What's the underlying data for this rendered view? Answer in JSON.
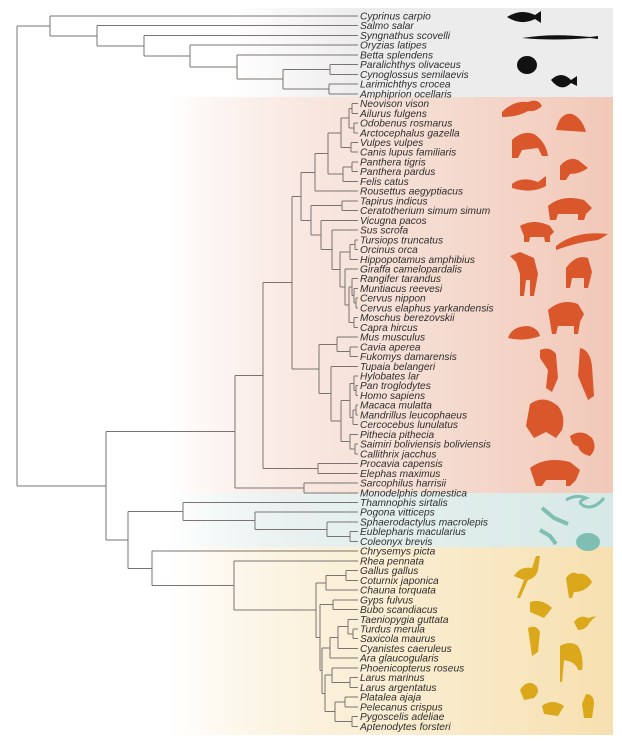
{
  "groups": [
    {
      "name": "fish",
      "color": "#ececec",
      "icon_color": "#111111",
      "species": [
        "Cyprinus carpio",
        "Salmo salar",
        "Syngnathus scovelli",
        "Oryzias latipes",
        "Betta splendens",
        "Paralichthys olivaceus",
        "Cynoglossus semilaevis",
        "Larimichthys crocea",
        "Amphiprion ocellaris"
      ],
      "icons": [
        "fish-silhouette-icon",
        "pipefish-silhouette-icon",
        "flatfish-silhouette-icon",
        "clownfish-silhouette-icon"
      ]
    },
    {
      "name": "mammals",
      "color": "#f3cfc2",
      "icon_color": "#d9572a",
      "species": [
        "Neovison vison",
        "Ailurus fulgens",
        "Odobenus rosmarus",
        "Arctocephalus gazella",
        "Vulpes vulpes",
        "Canis lupus familiaris",
        "Panthera tigris",
        "Panthera pardus",
        "Felis catus",
        "Rousettus aegyptiacus",
        "Tapirus indicus",
        "Ceratotherium simum simum",
        "Vicugna pacos",
        "Sus scrofa",
        "Tursiops truncatus",
        "Orcinus orca",
        "Hippopotamus amphibius",
        "Giraffa camelopardalis",
        "Rangifer tarandus",
        "Muntiacus reevesi",
        "Cervus nippon",
        "Cervus elaphus yarkandensis",
        "Moschus berezovskii",
        "Capra hircus",
        "Mus musculus",
        "Cavia aperea",
        "Fukomys damarensis",
        "Tupaia belangeri",
        "Hylobates lar",
        "Pan troglodytes",
        "Homo sapiens",
        "Macaca mulatta",
        "Mandrillus leucophaeus",
        "Cercocebus lunulatus",
        "Pithecia pithecia",
        "Saimiri boliviensis boliviensis",
        "Callithrix jacchus",
        "Procavia capensis",
        "Elephas maximus",
        "Sarcophilus harrisii",
        "Monodelphis domestica"
      ],
      "icons": [
        "otter-silhouette-icon",
        "seal-silhouette-icon",
        "dog-silhouette-icon",
        "fox-silhouette-icon",
        "cat-silhouette-icon",
        "tapir-silhouette-icon",
        "pig-silhouette-icon",
        "dolphin-silhouette-icon",
        "giraffe-silhouette-icon",
        "antelope-silhouette-icon",
        "goat-silhouette-icon",
        "mouse-silhouette-icon",
        "monkey-silhouette-icon",
        "gorilla-silhouette-icon",
        "lemur-silhouette-icon",
        "tasmanian-devil-silhouette-icon"
      ]
    },
    {
      "name": "reptiles",
      "color": "#dcebe9",
      "icon_color": "#7fbfb3",
      "species": [
        "Thamnophis sirtalis",
        "Pogona vitticeps",
        "Sphaerodactylus macrolepis",
        "Eublepharis macularius",
        "Coleonyx brevis",
        "Chrysemys picta"
      ],
      "icons": [
        "snake-silhouette-icon",
        "lizard-silhouette-icon",
        "gecko-silhouette-icon",
        "turtle-silhouette-icon"
      ]
    },
    {
      "name": "birds",
      "color": "#f8e5bd",
      "icon_color": "#dba81c",
      "species": [
        "Rhea pennata",
        "Gallus gallus",
        "Coturnix japonica",
        "Chauna torquata",
        "Gyps fulvus",
        "Bubo scandiacus",
        "Taeniopygia guttata",
        "Turdus merula",
        "Saxicola maurus",
        "Cyanistes caeruleus",
        "Ara glaucogularis",
        "Phoenicopterus roseus",
        "Larus marinus",
        "Larus argentatus",
        "Platalea ajaja",
        "Pelecanus crispus",
        "Pygoscelis adeliae",
        "Aptenodytes forsteri"
      ],
      "icons": [
        "rhea-silhouette-icon",
        "rooster-silhouette-icon",
        "vulture-silhouette-icon",
        "songbird-silhouette-icon",
        "parrot-silhouette-icon",
        "flamingo-silhouette-icon",
        "gull-silhouette-icon",
        "pelican-silhouette-icon",
        "penguin-silhouette-icon"
      ]
    }
  ],
  "branch_color": "#7a7470"
}
